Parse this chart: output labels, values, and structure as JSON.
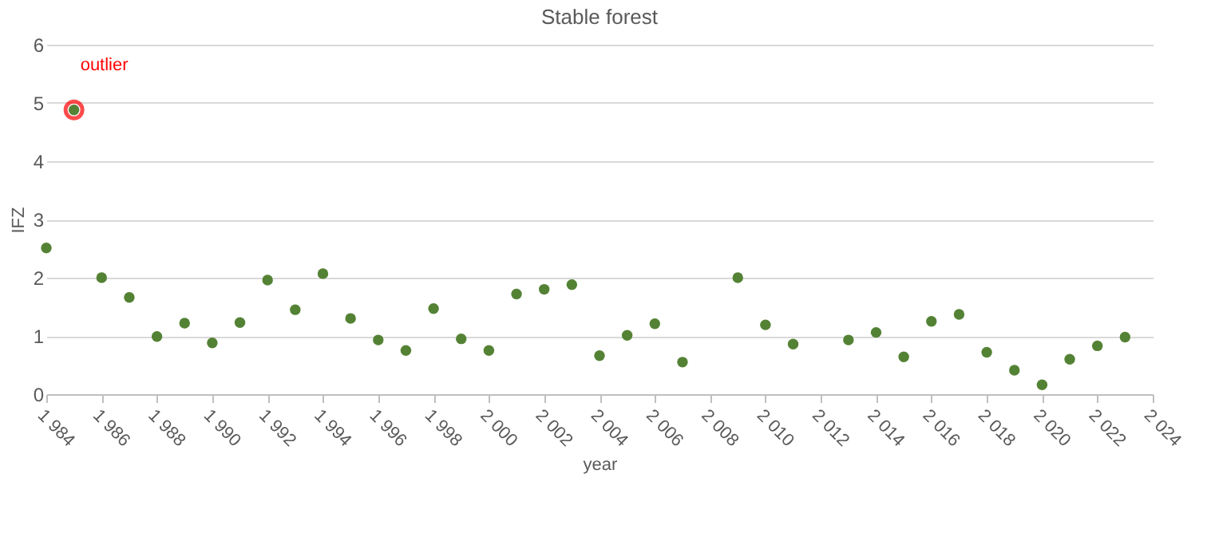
{
  "chart_data": {
    "type": "scatter",
    "title": "Stable forest",
    "xlabel": "year",
    "ylabel": "IFZ",
    "x": [
      1984,
      1985,
      1986,
      1987,
      1988,
      1989,
      1990,
      1991,
      1992,
      1993,
      1994,
      1995,
      1996,
      1997,
      1998,
      1999,
      2000,
      2001,
      2002,
      2003,
      2004,
      2005,
      2006,
      2007,
      2009,
      2010,
      2011,
      2013,
      2014,
      2015,
      2016,
      2017,
      2018,
      2019,
      2020,
      2021,
      2022,
      2023
    ],
    "series": [
      {
        "color": "#548235",
        "values": [
          2.51,
          4.88,
          2.0,
          1.66,
          0.99,
          1.22,
          0.88,
          1.23,
          1.96,
          1.45,
          2.07,
          1.3,
          0.93,
          0.75,
          1.47,
          0.95,
          0.75,
          1.72,
          1.8,
          1.88,
          0.66,
          1.01,
          1.21,
          0.55,
          2.0,
          1.19,
          0.86,
          0.93,
          1.06,
          0.64,
          1.25,
          1.37,
          0.72,
          0.41,
          0.16,
          0.6,
          0.83,
          0.98
        ]
      }
    ],
    "xlim": [
      1984,
      2024
    ],
    "xticks": [
      {
        "value": 1984,
        "label": "1 984"
      },
      {
        "value": 1986,
        "label": "1 986"
      },
      {
        "value": 1988,
        "label": "1 988"
      },
      {
        "value": 1990,
        "label": "1 990"
      },
      {
        "value": 1992,
        "label": "1 992"
      },
      {
        "value": 1994,
        "label": "1 994"
      },
      {
        "value": 1996,
        "label": "1 996"
      },
      {
        "value": 1998,
        "label": "1 998"
      },
      {
        "value": 2000,
        "label": "2 000"
      },
      {
        "value": 2002,
        "label": "2 002"
      },
      {
        "value": 2004,
        "label": "2 004"
      },
      {
        "value": 2006,
        "label": "2 006"
      },
      {
        "value": 2008,
        "label": "2 008"
      },
      {
        "value": 2010,
        "label": "2 010"
      },
      {
        "value": 2012,
        "label": "2 012"
      },
      {
        "value": 2014,
        "label": "2 014"
      },
      {
        "value": 2016,
        "label": "2 016"
      },
      {
        "value": 2018,
        "label": "2 018"
      },
      {
        "value": 2020,
        "label": "2 020"
      },
      {
        "value": 2022,
        "label": "2 022"
      },
      {
        "value": 2024,
        "label": "2 024"
      }
    ],
    "ylim": [
      0,
      6
    ],
    "yticks": [
      0,
      1,
      2,
      3,
      4,
      5,
      6
    ],
    "annotations": [
      {
        "text": "outlier",
        "x": 1985,
        "y": 4.88
      }
    ],
    "grid": "y",
    "marker": "circle"
  }
}
